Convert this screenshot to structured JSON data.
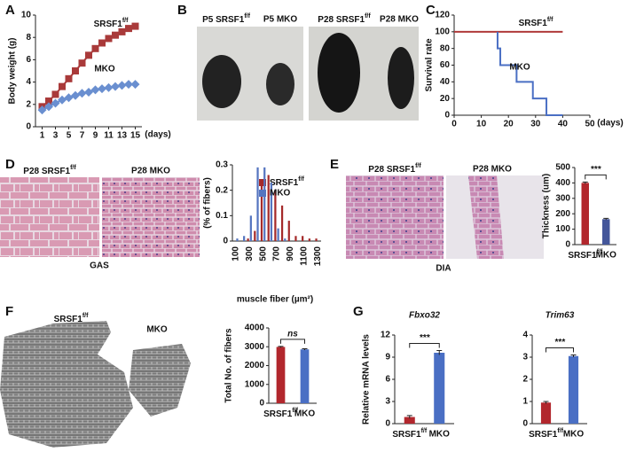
{
  "panel_labels": [
    "A",
    "B",
    "C",
    "D",
    "E",
    "F",
    "G"
  ],
  "image_labels": {
    "B": [
      "P5 SRSF1f/f",
      "P5 MKO",
      "P28 SRSF1f/f",
      "P28 MKO"
    ],
    "D": [
      "P28 SRSF1f/f",
      "P28 MKO",
      "GAS"
    ],
    "E": [
      "P28 SRSF1f/f",
      "P28 MKO",
      "DIA"
    ],
    "F": [
      "SRSF1f/f",
      "MKO"
    ]
  },
  "chart_data": [
    {
      "type": "line",
      "y_label": "Body weight (g)",
      "x_label": "(days)",
      "x": [
        1,
        2,
        3,
        4,
        5,
        6,
        7,
        8,
        9,
        10,
        11,
        12,
        13,
        14,
        15
      ],
      "series": [
        {
          "name": "SRSF1f/f",
          "color": "#a93a3a",
          "marker": "square",
          "values": [
            1.8,
            2.3,
            2.9,
            3.6,
            4.3,
            5.0,
            5.7,
            6.4,
            7.0,
            7.5,
            7.9,
            8.2,
            8.5,
            8.8,
            9.0
          ]
        },
        {
          "name": "MKO",
          "color": "#6a8fd0",
          "marker": "diamond",
          "values": [
            1.5,
            1.8,
            2.1,
            2.4,
            2.6,
            2.8,
            3.0,
            3.1,
            3.3,
            3.4,
            3.5,
            3.6,
            3.7,
            3.8,
            3.8
          ]
        }
      ],
      "xlim": [
        0,
        16
      ],
      "xticks": [
        1,
        3,
        5,
        7,
        9,
        11,
        13,
        15
      ],
      "ylim": [
        0,
        10
      ],
      "yticks": [
        0,
        2,
        4,
        6,
        8,
        10
      ]
    },
    {
      "type": "line",
      "y_label": "Survival rate",
      "x_label": "(days)",
      "series": [
        {
          "name": "SRSF1f/f",
          "color": "#b03a3a",
          "x": [
            0,
            40
          ],
          "values": [
            100,
            100
          ]
        },
        {
          "name": "MKO",
          "color": "#4a6fc4",
          "x": [
            16,
            16,
            17,
            17,
            23,
            23,
            29,
            29,
            34,
            34,
            40
          ],
          "values": [
            100,
            80,
            80,
            60,
            60,
            40,
            40,
            20,
            20,
            0,
            0
          ]
        }
      ],
      "xlim": [
        0,
        50
      ],
      "xticks": [
        0,
        10,
        20,
        30,
        40,
        50
      ],
      "ylim": [
        0,
        120
      ],
      "yticks": [
        0,
        20,
        40,
        60,
        80,
        100,
        120
      ]
    },
    {
      "type": "bar",
      "y_label": "(% of fibers)",
      "x_label": "muscle fiber (µm²)",
      "categories": [
        "100",
        null,
        "300",
        null,
        "500",
        null,
        "700",
        null,
        "900",
        null,
        "1100",
        null,
        "1300"
      ],
      "series": [
        {
          "name": "SRSF1f/f",
          "color": "#a52a2a",
          "values": [
            0,
            0,
            0.01,
            0.04,
            0.22,
            0.26,
            0.2,
            0.14,
            0.08,
            0.02,
            0.02,
            0.01,
            0.01
          ]
        },
        {
          "name": "MKO",
          "color": "#5575c0",
          "values": [
            0.01,
            0.02,
            0.1,
            0.29,
            0.29,
            0.23,
            0.05,
            0.01,
            0,
            0,
            0,
            0,
            0
          ]
        }
      ],
      "ylim": [
        0,
        0.3
      ],
      "yticks": [
        0,
        0.1,
        0.2,
        0.3
      ]
    },
    {
      "type": "bar",
      "y_label": "Thickness (um)",
      "categories": [
        "SRSF1f/f",
        "MKO"
      ],
      "values": [
        400,
        165
      ],
      "errors": [
        6,
        5
      ],
      "colors": [
        "#b2272d",
        "#44569a"
      ],
      "annotation": "***",
      "ylim": [
        0,
        500
      ],
      "yticks": [
        0,
        100,
        200,
        300,
        400,
        500
      ]
    },
    {
      "type": "bar",
      "y_label": "Total No. of fibers",
      "categories": [
        "SRSF1f/f",
        "MKO"
      ],
      "values": [
        2990,
        2860
      ],
      "errors": [
        30,
        35
      ],
      "colors": [
        "#b2272d",
        "#4a6fc4"
      ],
      "annotation": "ns",
      "ylim": [
        0,
        4000
      ],
      "yticks": [
        0,
        1000,
        2000,
        3000,
        4000
      ]
    },
    {
      "type": "bar",
      "title": "Fbxo32",
      "y_label": "Relative mRNA levels",
      "categories": [
        "SRSF1f/f",
        "MKO"
      ],
      "values": [
        0.9,
        9.6
      ],
      "errors": [
        0.2,
        0.3
      ],
      "colors": [
        "#b2272d",
        "#4a6fc4"
      ],
      "annotation": "***",
      "ylim": [
        0,
        12
      ],
      "yticks": [
        0,
        3,
        6,
        9,
        12
      ]
    },
    {
      "type": "bar",
      "title": "Trim63",
      "categories": [
        "SRSF1f/f",
        "MKO"
      ],
      "values": [
        0.95,
        3.05
      ],
      "errors": [
        0.05,
        0.05
      ],
      "colors": [
        "#b2272d",
        "#4a6fc4"
      ],
      "annotation": "***",
      "ylim": [
        0,
        4
      ],
      "yticks": [
        0,
        1,
        2,
        3,
        4
      ]
    }
  ]
}
